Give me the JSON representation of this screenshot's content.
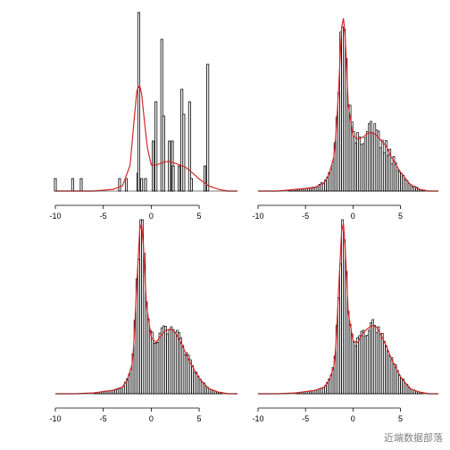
{
  "colors": {
    "bars": "#000000",
    "bar_fill": "#ffffff",
    "density": "#d62728",
    "axis": "#000000"
  },
  "watermark": "近端数据部落",
  "chart_data": [
    {
      "type": "bar",
      "title": "",
      "xlabel": "",
      "ylabel": "",
      "xlim": [
        -10,
        9
      ],
      "xticks": [
        -10,
        -5,
        0,
        5
      ],
      "grid": false,
      "histogram": {
        "x": [
          -10,
          -8.2,
          -7.3,
          -3.3,
          -2.6,
          -1.4,
          -1.3,
          -1.0,
          -0.6,
          0.2,
          0.5,
          1.1,
          1.3,
          1.9,
          2.2,
          2.3,
          2.9,
          3.2,
          3.4,
          4.0,
          4.2,
          5.6,
          5.9
        ],
        "height": [
          0.07,
          0.07,
          0.07,
          0.07,
          0.07,
          0.1,
          1.0,
          0.07,
          0.07,
          0.28,
          0.5,
          0.85,
          0.42,
          0.28,
          0.28,
          0.14,
          0.14,
          0.57,
          0.43,
          0.5,
          0.07,
          0.14,
          0.71
        ]
      },
      "density": {
        "x": [
          -10,
          -8,
          -6,
          -4,
          -3,
          -2.2,
          -1.8,
          -1.5,
          -1.2,
          -1.0,
          -0.7,
          -0.4,
          0,
          0.5,
          1,
          1.5,
          2,
          2.5,
          3,
          3.5,
          4,
          5,
          6,
          7,
          8,
          9
        ],
        "y": [
          0,
          0,
          0,
          0.01,
          0.03,
          0.15,
          0.4,
          0.58,
          0.61,
          0.56,
          0.4,
          0.25,
          0.15,
          0.15,
          0.16,
          0.17,
          0.17,
          0.16,
          0.15,
          0.14,
          0.12,
          0.07,
          0.03,
          0.01,
          0,
          0
        ]
      }
    },
    {
      "type": "bar",
      "title": "",
      "xlabel": "",
      "ylabel": "",
      "xlim": [
        -10,
        9
      ],
      "xticks": [
        -10,
        -5,
        0,
        5
      ],
      "grid": false,
      "histogram_function": "density",
      "density": {
        "x": [
          -10,
          -8,
          -6,
          -4,
          -3,
          -2.5,
          -2,
          -1.8,
          -1.5,
          -1.2,
          -1.0,
          -0.8,
          -0.5,
          0,
          0.5,
          1,
          1.5,
          2,
          2.5,
          3,
          3.5,
          4,
          5,
          6,
          7,
          8,
          9
        ],
        "y": [
          0,
          0,
          0.01,
          0.02,
          0.05,
          0.1,
          0.2,
          0.32,
          0.6,
          0.94,
          1.0,
          0.88,
          0.5,
          0.32,
          0.3,
          0.31,
          0.33,
          0.34,
          0.32,
          0.29,
          0.26,
          0.2,
          0.11,
          0.04,
          0.01,
          0,
          0
        ]
      }
    },
    {
      "type": "bar",
      "title": "",
      "xlabel": "",
      "ylabel": "",
      "xlim": [
        -10,
        9
      ],
      "xticks": [
        -10,
        -5,
        0,
        5
      ],
      "grid": false,
      "histogram_function": "density",
      "density": {
        "x": [
          -10,
          -8,
          -6,
          -4,
          -3,
          -2.5,
          -2,
          -1.8,
          -1.5,
          -1.2,
          -1.0,
          -0.8,
          -0.5,
          0,
          0.5,
          1,
          1.5,
          2,
          2.5,
          3,
          3.5,
          4,
          5,
          6,
          7,
          8,
          9
        ],
        "y": [
          0,
          0,
          0.005,
          0.02,
          0.04,
          0.08,
          0.17,
          0.3,
          0.65,
          0.96,
          1.0,
          0.86,
          0.52,
          0.33,
          0.3,
          0.34,
          0.37,
          0.38,
          0.36,
          0.31,
          0.25,
          0.19,
          0.09,
          0.03,
          0.01,
          0,
          0
        ]
      }
    },
    {
      "type": "bar",
      "title": "",
      "xlabel": "",
      "ylabel": "",
      "xlim": [
        -10,
        9
      ],
      "xticks": [
        -10,
        -5,
        0,
        5
      ],
      "grid": false,
      "histogram_function": "density",
      "density": {
        "x": [
          -10,
          -8,
          -6,
          -4,
          -3,
          -2.5,
          -2,
          -1.8,
          -1.5,
          -1.2,
          -1.0,
          -0.8,
          -0.5,
          0,
          0.5,
          1,
          1.5,
          2,
          2.5,
          3,
          3.5,
          4,
          5,
          6,
          7,
          8,
          9
        ],
        "y": [
          0,
          0,
          0.005,
          0.02,
          0.04,
          0.08,
          0.16,
          0.28,
          0.62,
          0.95,
          1.0,
          0.84,
          0.48,
          0.31,
          0.3,
          0.35,
          0.38,
          0.4,
          0.39,
          0.34,
          0.28,
          0.21,
          0.1,
          0.03,
          0.01,
          0,
          0
        ]
      }
    }
  ]
}
